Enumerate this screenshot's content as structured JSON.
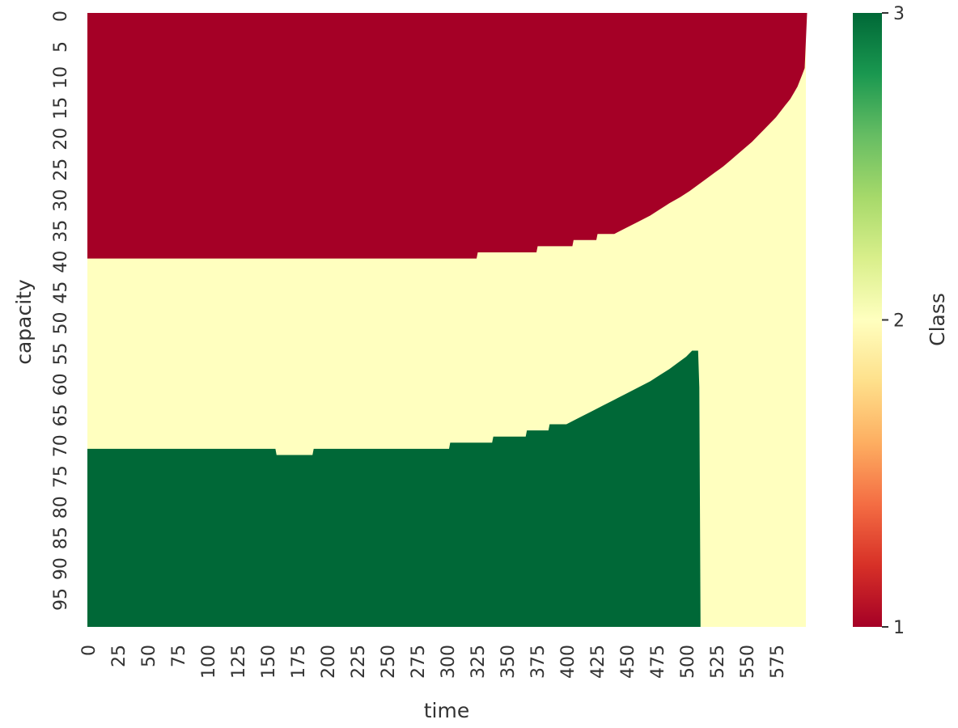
{
  "chart_data": {
    "type": "heatmap",
    "title": "",
    "xlabel": "time",
    "ylabel": "capacity",
    "x_ticks": [
      "0",
      "25",
      "50",
      "75",
      "100",
      "125",
      "150",
      "175",
      "200",
      "225",
      "250",
      "275",
      "300",
      "325",
      "350",
      "375",
      "400",
      "425",
      "450",
      "475",
      "500",
      "525",
      "550",
      "575"
    ],
    "y_ticks": [
      "0",
      "5",
      "10",
      "15",
      "20",
      "25",
      "30",
      "35",
      "40",
      "45",
      "50",
      "55",
      "60",
      "65",
      "70",
      "75",
      "80",
      "85",
      "90",
      "95"
    ],
    "x_range": [
      0,
      600
    ],
    "y_range": [
      0,
      100
    ],
    "colorbar": {
      "label": "Class",
      "ticks": [
        "1",
        "2",
        "3"
      ],
      "range": [
        1,
        3
      ],
      "colormap": "RdYlGn",
      "colors": [
        "#a50026",
        "#d73027",
        "#f46d43",
        "#fdae61",
        "#fee08b",
        "#ffffbf",
        "#d9ef8b",
        "#a6d96a",
        "#66bd63",
        "#1a9850",
        "#006837"
      ]
    },
    "class_colors": {
      "1": "#a50026",
      "2": "#ffffbf",
      "3": "#006837"
    },
    "regions": [
      {
        "class": 1,
        "description_boundary": "class 1 occupies capacity from 0 up to this boundary (time, capacity)",
        "upper_boundary": [
          [
            0,
            40
          ],
          [
            325,
            40
          ],
          [
            326,
            39
          ],
          [
            375,
            39
          ],
          [
            376,
            38
          ],
          [
            405,
            38
          ],
          [
            406,
            37
          ],
          [
            425,
            37
          ],
          [
            426,
            36
          ],
          [
            440,
            36
          ],
          [
            450,
            35
          ],
          [
            460,
            34
          ],
          [
            470,
            33
          ],
          [
            478,
            32
          ],
          [
            486,
            31
          ],
          [
            495,
            30
          ],
          [
            503,
            29
          ],
          [
            510,
            28
          ],
          [
            517,
            27
          ],
          [
            524,
            26
          ],
          [
            531,
            25
          ],
          [
            537,
            24
          ],
          [
            543,
            23
          ],
          [
            549,
            22
          ],
          [
            555,
            21
          ],
          [
            560,
            20
          ],
          [
            565,
            19
          ],
          [
            570,
            18
          ],
          [
            575,
            17
          ],
          [
            579,
            16
          ],
          [
            583,
            15
          ],
          [
            587,
            14
          ],
          [
            590,
            13
          ],
          [
            593,
            12
          ],
          [
            595,
            11
          ],
          [
            597,
            10
          ],
          [
            599,
            9
          ],
          [
            601,
            0
          ]
        ]
      },
      {
        "class": 3,
        "description_boundary": "class 3 occupies capacity from this boundary down to 100 (time, capacity)",
        "lower_boundary": [
          [
            0,
            71
          ],
          [
            157,
            71
          ],
          [
            158,
            72
          ],
          [
            188,
            72
          ],
          [
            189,
            71
          ],
          [
            302,
            71
          ],
          [
            303,
            70
          ],
          [
            338,
            70
          ],
          [
            339,
            69
          ],
          [
            366,
            69
          ],
          [
            367,
            68
          ],
          [
            385,
            68
          ],
          [
            386,
            67
          ],
          [
            400,
            67
          ],
          [
            410,
            66
          ],
          [
            420,
            65
          ],
          [
            430,
            64
          ],
          [
            440,
            63
          ],
          [
            450,
            62
          ],
          [
            460,
            61
          ],
          [
            470,
            60
          ],
          [
            478,
            59
          ],
          [
            486,
            58
          ],
          [
            493,
            57
          ],
          [
            500,
            56
          ],
          [
            505,
            55
          ],
          [
            510,
            55
          ],
          [
            511,
            61
          ],
          [
            512,
            100
          ]
        ]
      }
    ]
  }
}
